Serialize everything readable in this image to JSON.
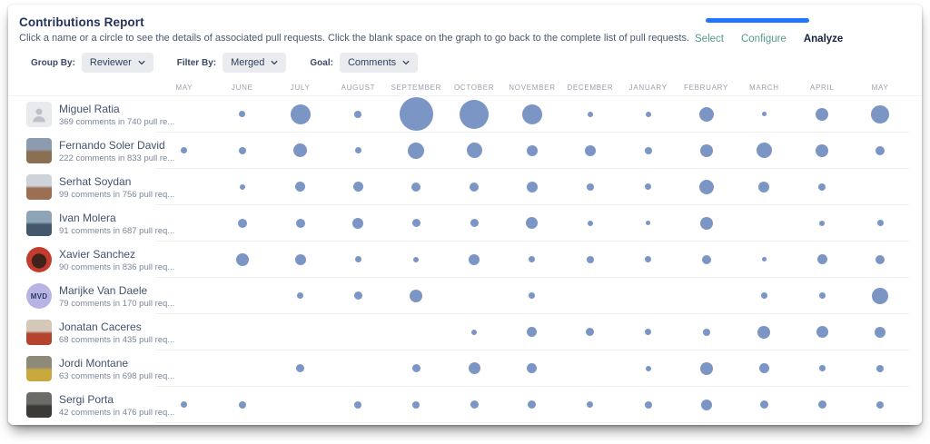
{
  "header": {
    "title": "Contributions Report",
    "subtitle": "Click a name or a circle to see the details of associated pull requests. Click the blank space on the graph to go back to the complete list of pull requests."
  },
  "steps": {
    "progress_color": "#2176ff",
    "inactive_color": "#55998e",
    "items": [
      {
        "label": "Select",
        "active": false
      },
      {
        "label": "Configure",
        "active": false
      },
      {
        "label": "Analyze",
        "active": true
      }
    ]
  },
  "controls": {
    "group_by": {
      "label": "Group By:",
      "value": "Reviewer"
    },
    "filter_by": {
      "label": "Filter By:",
      "value": "Merged"
    },
    "goal": {
      "label": "Goal:",
      "value": "Comments"
    }
  },
  "months": [
    "MAY",
    "JUNE",
    "JULY",
    "AUGUST",
    "SEPTEMBER",
    "OCTOBER",
    "NOVEMBER",
    "DECEMBER",
    "JANUARY",
    "FEBRUARY",
    "MARCH",
    "APRIL",
    "MAY"
  ],
  "people": [
    {
      "name": "Miguel Ratia",
      "stats": "369 comments in 740 pull re...",
      "avatar": {
        "shape": "rounded",
        "placeholder": true,
        "colors": [
          "#e9eaec"
        ]
      }
    },
    {
      "name": "Fernando Soler David",
      "stats": "222 comments in 833 pull re...",
      "avatar": {
        "shape": "rounded",
        "colors": [
          "#8d9bb0",
          "#8a6f52"
        ]
      }
    },
    {
      "name": "Serhat Soydan",
      "stats": "99 comments in 756 pull req...",
      "avatar": {
        "shape": "rounded",
        "colors": [
          "#cdd3d8",
          "#9c6f55"
        ]
      }
    },
    {
      "name": "Ivan Molera",
      "stats": "91 comments in 687 pull req...",
      "avatar": {
        "shape": "rounded",
        "colors": [
          "#8da4b8",
          "#45586b"
        ]
      }
    },
    {
      "name": "Xavier Sanchez",
      "stats": "90 comments in 836 pull req...",
      "avatar": {
        "shape": "circle",
        "colors": [
          "#c23b2e",
          "#3f2219"
        ],
        "radial": true
      }
    },
    {
      "name": "Marijke Van Daele",
      "stats": "79 comments in 170 pull req...",
      "avatar": {
        "shape": "circle",
        "colors": [
          "#b8b5e4"
        ],
        "initials": "MVD",
        "fg": "#2d3b63"
      }
    },
    {
      "name": "Jonatan Caceres",
      "stats": "68 comments in 435 pull req...",
      "avatar": {
        "shape": "rounded",
        "colors": [
          "#d4c8b8",
          "#b5442f"
        ]
      }
    },
    {
      "name": "Jordi Montane",
      "stats": "63 comments in 698 pull req...",
      "avatar": {
        "shape": "rounded",
        "colors": [
          "#8e8a79",
          "#c9a83e"
        ]
      }
    },
    {
      "name": "Sergi Porta",
      "stats": "42 comments in 476 pull req...",
      "avatar": {
        "shape": "rounded",
        "colors": [
          "#6b6b68",
          "#3c3a37"
        ]
      }
    }
  ],
  "chart_data": {
    "type": "bubble",
    "title": "Contributions Report",
    "x_categories": [
      "MAY",
      "JUNE",
      "JULY",
      "AUGUST",
      "SEPTEMBER",
      "OCTOBER",
      "NOVEMBER",
      "DECEMBER",
      "JANUARY",
      "FEBRUARY",
      "MARCH",
      "APRIL",
      "MAY"
    ],
    "y_categories": [
      "Miguel Ratia",
      "Fernando Soler David",
      "Serhat Soydan",
      "Ivan Molera",
      "Xavier Sanchez",
      "Marijke Van Daele",
      "Jonatan Caceres",
      "Jordi Montane",
      "Sergi Porta"
    ],
    "size_unit": "bubble diameter in px, proportional to comment count; 0 = no bubble",
    "color": "#7b95c5",
    "grid": "horizontal row dividers only",
    "series": [
      {
        "name": "Miguel Ratia",
        "sizes": [
          0,
          7,
          22,
          8,
          37,
          32,
          22,
          6,
          6,
          16,
          5,
          14,
          20
        ]
      },
      {
        "name": "Fernando Soler David",
        "sizes": [
          7,
          8,
          15,
          7,
          18,
          17,
          12,
          12,
          8,
          14,
          17,
          14,
          10
        ]
      },
      {
        "name": "Serhat Soydan",
        "sizes": [
          0,
          6,
          11,
          11,
          10,
          10,
          12,
          8,
          7,
          16,
          12,
          8,
          0
        ]
      },
      {
        "name": "Ivan Molera",
        "sizes": [
          0,
          10,
          10,
          12,
          9,
          9,
          13,
          6,
          5,
          14,
          0,
          6,
          7
        ]
      },
      {
        "name": "Xavier Sanchez",
        "sizes": [
          0,
          14,
          12,
          7,
          6,
          12,
          7,
          8,
          7,
          10,
          5,
          11,
          10
        ]
      },
      {
        "name": "Marijke Van Daele",
        "sizes": [
          0,
          0,
          7,
          9,
          14,
          0,
          7,
          0,
          0,
          0,
          7,
          7,
          18
        ]
      },
      {
        "name": "Jonatan Caceres",
        "sizes": [
          0,
          0,
          0,
          0,
          0,
          6,
          11,
          9,
          7,
          8,
          14,
          13,
          12
        ]
      },
      {
        "name": "Jordi Montane",
        "sizes": [
          0,
          0,
          9,
          0,
          9,
          13,
          11,
          0,
          6,
          14,
          11,
          7,
          8
        ]
      },
      {
        "name": "Sergi Porta",
        "sizes": [
          7,
          8,
          0,
          8,
          8,
          9,
          9,
          7,
          8,
          12,
          9,
          9,
          8
        ]
      }
    ]
  }
}
